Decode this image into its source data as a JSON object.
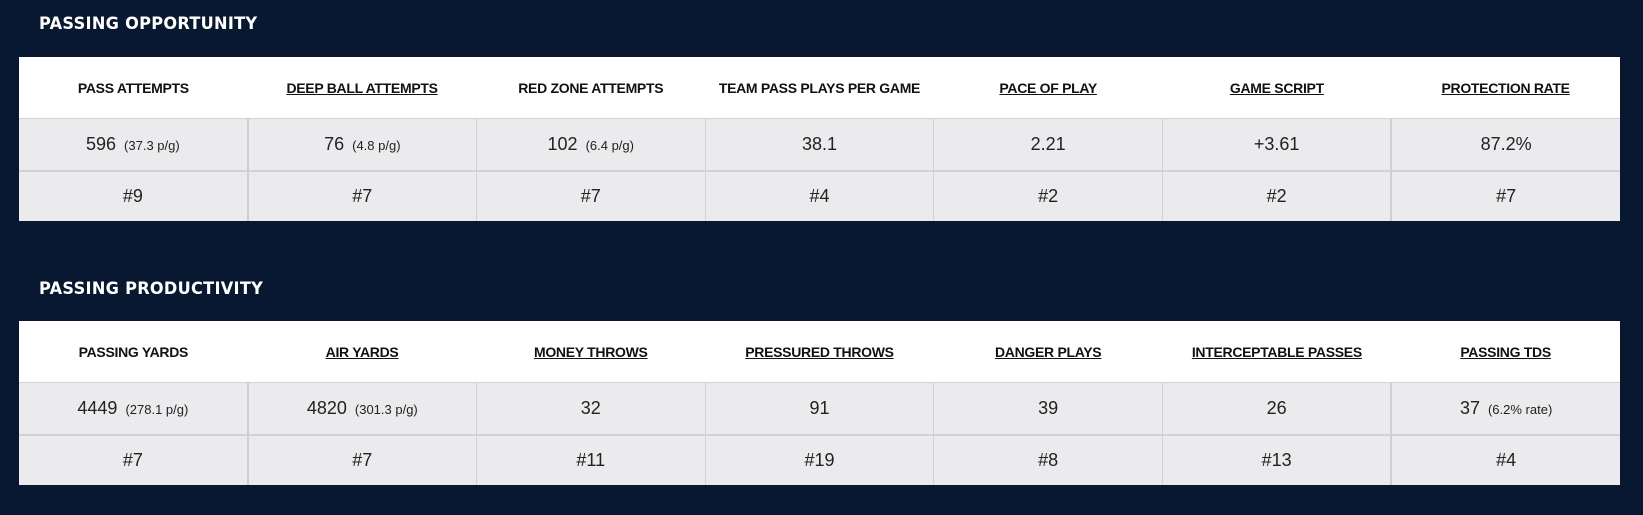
{
  "sections": [
    {
      "title": "PASSING OPPORTUNITY",
      "columns": [
        {
          "label": "PASS ATTEMPTS",
          "link": false,
          "value": "596",
          "sub": "(37.3 p/g)",
          "rank": "#9"
        },
        {
          "label": "DEEP BALL ATTEMPTS",
          "link": true,
          "value": "76",
          "sub": "(4.8 p/g)",
          "rank": "#7"
        },
        {
          "label": "RED ZONE ATTEMPTS",
          "link": false,
          "value": "102",
          "sub": "(6.4 p/g)",
          "rank": "#7"
        },
        {
          "label": "TEAM PASS PLAYS PER GAME",
          "link": false,
          "value": "38.1",
          "sub": "",
          "rank": "#4"
        },
        {
          "label": "PACE OF PLAY",
          "link": true,
          "value": "2.21",
          "sub": "",
          "rank": "#2"
        },
        {
          "label": "GAME SCRIPT",
          "link": true,
          "value": "+3.61",
          "sub": "",
          "rank": "#2"
        },
        {
          "label": "PROTECTION RATE",
          "link": true,
          "value": "87.2%",
          "sub": "",
          "rank": "#7"
        }
      ]
    },
    {
      "title": "PASSING PRODUCTIVITY",
      "columns": [
        {
          "label": "PASSING YARDS",
          "link": false,
          "value": "4449",
          "sub": "(278.1 p/g)",
          "rank": "#7"
        },
        {
          "label": "AIR YARDS",
          "link": true,
          "value": "4820",
          "sub": "(301.3 p/g)",
          "rank": "#7"
        },
        {
          "label": "MONEY THROWS",
          "link": true,
          "value": "32",
          "sub": "",
          "rank": "#11"
        },
        {
          "label": "PRESSURED THROWS",
          "link": true,
          "value": "91",
          "sub": "",
          "rank": "#19"
        },
        {
          "label": "DANGER PLAYS",
          "link": true,
          "value": "39",
          "sub": "",
          "rank": "#8"
        },
        {
          "label": "INTERCEPTABLE PASSES",
          "link": true,
          "value": "26",
          "sub": "",
          "rank": "#13"
        },
        {
          "label": "PASSING TDS",
          "link": true,
          "value": "37",
          "sub": "(6.2% rate)",
          "rank": "#4"
        }
      ]
    }
  ],
  "colors": {
    "background": "#081830",
    "header_bg": "#ffffff",
    "cell_bg": "#ebebed"
  }
}
